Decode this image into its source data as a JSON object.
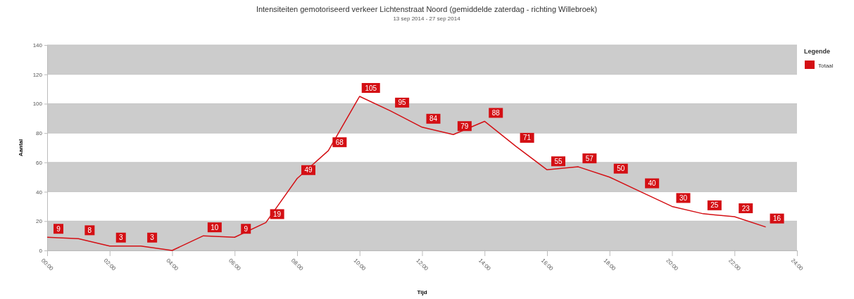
{
  "chart_data": {
    "type": "line",
    "title": "Intensiteiten gemotoriseerd verkeer Lichtenstraat Noord (gemiddelde zaterdag - richting Willebroek)",
    "subtitle": "13 sep 2014 - 27 sep 2014",
    "xlabel": "Tijd",
    "ylabel": "Aantal",
    "legend_title": "Legende",
    "legend": "right",
    "grid": "y",
    "marker": "none",
    "x": [
      0,
      1,
      2,
      3,
      4,
      5,
      6,
      7,
      8,
      9,
      10,
      11,
      12,
      13,
      14,
      15,
      16,
      17,
      18,
      19,
      20,
      21,
      22,
      23
    ],
    "xlim": [
      0,
      24
    ],
    "xticks": [
      {
        "value": 0,
        "label": "00:00"
      },
      {
        "value": 2,
        "label": "02:00"
      },
      {
        "value": 4,
        "label": "04:00"
      },
      {
        "value": 6,
        "label": "06:00"
      },
      {
        "value": 8,
        "label": "08:00"
      },
      {
        "value": 10,
        "label": "10:00"
      },
      {
        "value": 12,
        "label": "12:00"
      },
      {
        "value": 14,
        "label": "14:00"
      },
      {
        "value": 16,
        "label": "16:00"
      },
      {
        "value": 18,
        "label": "18:00"
      },
      {
        "value": 20,
        "label": "20:00"
      },
      {
        "value": 22,
        "label": "22:00"
      },
      {
        "value": 24,
        "label": "24:00"
      }
    ],
    "ylim": [
      0,
      140
    ],
    "yticks": [
      0,
      20,
      40,
      60,
      80,
      100,
      120,
      140
    ],
    "series": [
      {
        "name": "Totaal",
        "color": "#d40f14",
        "values": [
          9,
          8,
          3,
          3,
          0,
          10,
          9,
          19,
          49,
          68,
          105,
          95,
          84,
          79,
          88,
          71,
          55,
          57,
          50,
          40,
          30,
          25,
          23,
          16
        ],
        "value_labels": [
          "9",
          "8",
          "3",
          "3",
          null,
          "10",
          "9",
          "19",
          "49",
          "68",
          "105",
          "95",
          "84",
          "79",
          "88",
          "71",
          "55",
          "57",
          "50",
          "40",
          "30",
          "25",
          "23",
          "16"
        ]
      }
    ]
  }
}
